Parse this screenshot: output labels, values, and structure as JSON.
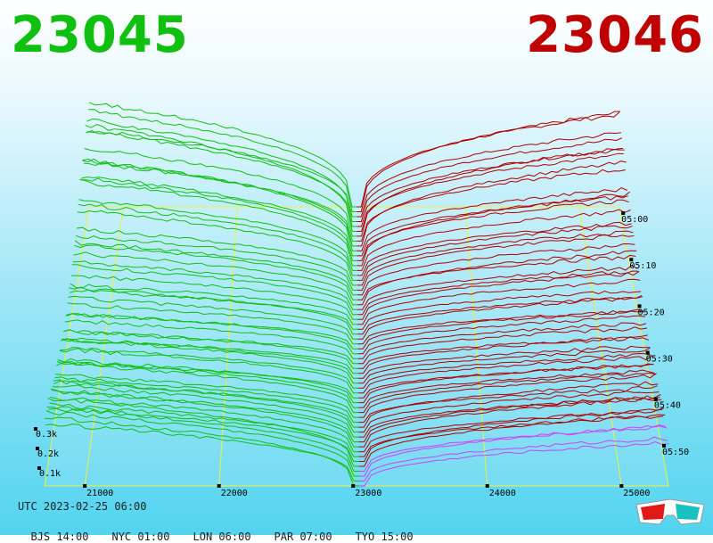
{
  "bid_price": "23045",
  "ask_price": "23046",
  "colors": {
    "bid": "#10c010",
    "ask": "#b00000",
    "grid": "#f0f040",
    "highlight": "#d040ff"
  },
  "chart_data": {
    "type": "3d-depth-surface",
    "x_ticks": [
      "21000",
      "22000",
      "23000",
      "24000",
      "25000"
    ],
    "time_ticks": [
      "05:00",
      "05:10",
      "05:20",
      "05:30",
      "05:40",
      "05:50"
    ],
    "volume_ticks": [
      "0.3k",
      "0.2k",
      "0.1k"
    ],
    "mid_price": 23045.5,
    "series": [
      {
        "side": "bid",
        "start_depth": 0.28,
        "end_depth": 0.27
      },
      {
        "side": "ask",
        "start_depth": 0.19,
        "end_depth": 0.14
      }
    ]
  },
  "footer": {
    "utc": "UTC 2023-02-25 06:00",
    "timezones": [
      "BJS 14:00",
      "NYC 01:00",
      "LON 06:00",
      "PAR 07:00",
      "TYO 15:00"
    ]
  },
  "icons": {
    "glasses": "3d-glasses-icon"
  }
}
